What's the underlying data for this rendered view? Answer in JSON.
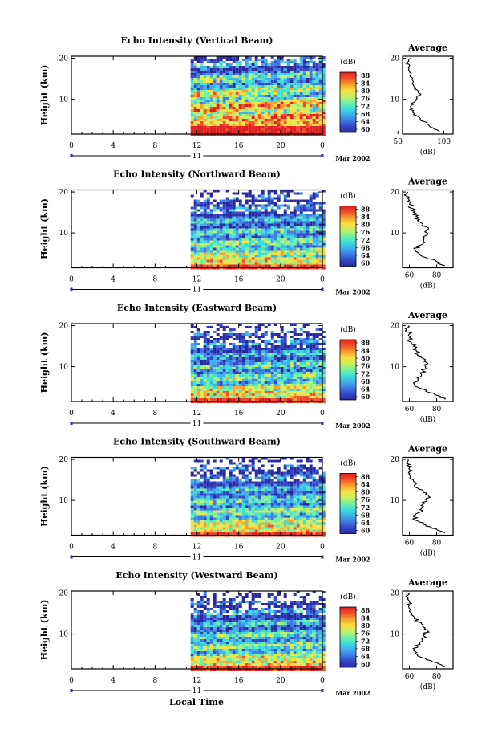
{
  "figure": {
    "xlabel": "Local Time",
    "date_label": "Mar 2002",
    "day_label": "11",
    "colorbar_unit": "(dB)",
    "colorbar_ticks": [
      "88",
      "84",
      "80",
      "76",
      "72",
      "68",
      "64",
      "60"
    ],
    "avg_title": "Average",
    "avg_xlabel": "(dB)",
    "ylabel": "Height (km)"
  },
  "colors": {
    "colormap": [
      "#2a2aa0",
      "#3347c8",
      "#3f7be0",
      "#3fb0ee",
      "#3ce0d8",
      "#76f0a0",
      "#c8f060",
      "#f8e040",
      "#f8a030",
      "#f05028",
      "#e02020"
    ]
  },
  "chart_data": [
    {
      "type": "heatmap",
      "title": "Echo Intensity (Vertical Beam)",
      "x_ticks": [
        "0",
        "4",
        "8",
        "12",
        "16",
        "20",
        "0"
      ],
      "y_ticks": [
        "20",
        "10"
      ],
      "xlim": [
        0,
        24
      ],
      "ylim": [
        1.5,
        20.5
      ],
      "data_start_hour": 11.4,
      "colorbar_range": [
        60,
        88
      ],
      "avg_profile": {
        "title": "Average",
        "xlabel": "(dB)",
        "xlim": [
          55,
          110
        ],
        "x_ticks": [
          "50",
          "100"
        ],
        "y_ticks": [
          "20",
          "10"
        ],
        "points": [
          [
            95,
            2
          ],
          [
            88,
            3
          ],
          [
            82,
            4
          ],
          [
            74,
            5
          ],
          [
            70,
            6
          ],
          [
            66,
            7
          ],
          [
            64,
            8
          ],
          [
            65,
            9
          ],
          [
            70,
            10
          ],
          [
            74,
            11
          ],
          [
            72,
            12
          ],
          [
            68,
            13
          ],
          [
            66,
            14
          ],
          [
            66,
            15
          ],
          [
            64,
            16
          ],
          [
            62,
            17
          ],
          [
            62,
            18
          ],
          [
            60,
            19
          ],
          [
            64,
            20
          ]
        ]
      }
    },
    {
      "type": "heatmap",
      "title": "Echo Intensity (Northward Beam)",
      "x_ticks": [
        "0",
        "4",
        "8",
        "12",
        "16",
        "20",
        "0"
      ],
      "y_ticks": [
        "20",
        "10"
      ],
      "xlim": [
        0,
        24
      ],
      "ylim": [
        1.5,
        20.5
      ],
      "data_start_hour": 11.4,
      "colorbar_range": [
        60,
        88
      ],
      "avg_profile": {
        "title": "Average",
        "xlabel": "(dB)",
        "xlim": [
          55,
          92
        ],
        "x_ticks": [
          "60",
          "80"
        ],
        "y_ticks": [
          "20",
          "10"
        ],
        "points": [
          [
            86,
            2
          ],
          [
            80,
            3
          ],
          [
            72,
            4
          ],
          [
            67,
            5
          ],
          [
            64,
            6
          ],
          [
            68,
            7
          ],
          [
            70,
            8
          ],
          [
            70,
            9
          ],
          [
            73,
            10
          ],
          [
            74,
            11
          ],
          [
            70,
            12
          ],
          [
            66,
            13
          ],
          [
            65,
            14
          ],
          [
            63,
            15
          ],
          [
            62,
            16
          ],
          [
            60,
            17
          ],
          [
            60,
            18
          ],
          [
            58,
            19
          ],
          [
            59,
            20
          ]
        ]
      }
    },
    {
      "type": "heatmap",
      "title": "Echo Intensity (Eastward Beam)",
      "x_ticks": [
        "0",
        "4",
        "8",
        "12",
        "16",
        "20",
        "0"
      ],
      "y_ticks": [
        "20",
        "10"
      ],
      "xlim": [
        0,
        24
      ],
      "ylim": [
        1.5,
        20.5
      ],
      "data_start_hour": 11.4,
      "colorbar_range": [
        60,
        88
      ],
      "avg_profile": {
        "title": "Average",
        "xlabel": "(dB)",
        "xlim": [
          55,
          92
        ],
        "x_ticks": [
          "60",
          "80"
        ],
        "y_ticks": [
          "20",
          "10"
        ],
        "points": [
          [
            86,
            2
          ],
          [
            80,
            3
          ],
          [
            72,
            4
          ],
          [
            66,
            5
          ],
          [
            63,
            6
          ],
          [
            67,
            7
          ],
          [
            69,
            8
          ],
          [
            70,
            9
          ],
          [
            72,
            10
          ],
          [
            73,
            11
          ],
          [
            70,
            12
          ],
          [
            66,
            13
          ],
          [
            65,
            14
          ],
          [
            63,
            15
          ],
          [
            61,
            16
          ],
          [
            60,
            17
          ],
          [
            60,
            18
          ],
          [
            58,
            19
          ],
          [
            59,
            20
          ]
        ]
      }
    },
    {
      "type": "heatmap",
      "title": "Echo Intensity (Southward Beam)",
      "x_ticks": [
        "0",
        "4",
        "8",
        "12",
        "16",
        "20",
        "0"
      ],
      "y_ticks": [
        "20",
        "10"
      ],
      "xlim": [
        0,
        24
      ],
      "ylim": [
        1.5,
        20.5
      ],
      "data_start_hour": 11.4,
      "colorbar_range": [
        60,
        88
      ],
      "avg_profile": {
        "title": "Average",
        "xlabel": "(dB)",
        "xlim": [
          55,
          92
        ],
        "x_ticks": [
          "60",
          "80"
        ],
        "y_ticks": [
          "20",
          "10"
        ],
        "points": [
          [
            86,
            2
          ],
          [
            80,
            3
          ],
          [
            72,
            4
          ],
          [
            66,
            5
          ],
          [
            63,
            6
          ],
          [
            67,
            7
          ],
          [
            69,
            8
          ],
          [
            70,
            9
          ],
          [
            73,
            10
          ],
          [
            74,
            11
          ],
          [
            70,
            12
          ],
          [
            66,
            13
          ],
          [
            65,
            14
          ],
          [
            63,
            15
          ],
          [
            61,
            16
          ],
          [
            60,
            17
          ],
          [
            60,
            18
          ],
          [
            58,
            19
          ],
          [
            59,
            20
          ]
        ]
      }
    },
    {
      "type": "heatmap",
      "title": "Echo Intensity (Westward Beam)",
      "x_ticks": [
        "0",
        "4",
        "8",
        "12",
        "16",
        "20",
        "0"
      ],
      "y_ticks": [
        "20",
        "10"
      ],
      "xlim": [
        0,
        24
      ],
      "ylim": [
        1.5,
        20.5
      ],
      "data_start_hour": 11.4,
      "colorbar_range": [
        60,
        88
      ],
      "avg_profile": {
        "title": "Average",
        "xlabel": "(dB)",
        "xlim": [
          55,
          92
        ],
        "x_ticks": [
          "60",
          "80"
        ],
        "y_ticks": [
          "20",
          "10"
        ],
        "points": [
          [
            86,
            2
          ],
          [
            80,
            3
          ],
          [
            72,
            4
          ],
          [
            66,
            5
          ],
          [
            63,
            6
          ],
          [
            66,
            7
          ],
          [
            68,
            8
          ],
          [
            70,
            9
          ],
          [
            72,
            10
          ],
          [
            73,
            11
          ],
          [
            70,
            12
          ],
          [
            66,
            13
          ],
          [
            64,
            14
          ],
          [
            62,
            15
          ],
          [
            61,
            16
          ],
          [
            60,
            17
          ],
          [
            60,
            18
          ],
          [
            58,
            19
          ],
          [
            59,
            20
          ]
        ]
      }
    }
  ]
}
